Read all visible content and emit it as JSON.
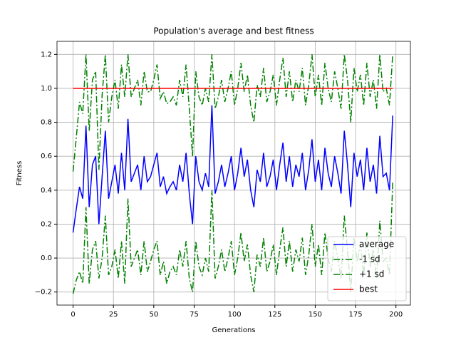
{
  "chart_data": {
    "type": "line",
    "title": "Population's average and best fitness",
    "xlabel": "Generations",
    "ylabel": "Fitness",
    "x": [
      0,
      2,
      4,
      6,
      8,
      10,
      12,
      14,
      16,
      18,
      20,
      22,
      24,
      26,
      28,
      30,
      32,
      34,
      36,
      38,
      40,
      42,
      44,
      46,
      48,
      50,
      52,
      54,
      56,
      58,
      60,
      62,
      64,
      66,
      68,
      70,
      72,
      74,
      76,
      78,
      80,
      82,
      84,
      86,
      88,
      90,
      92,
      94,
      96,
      98,
      100,
      102,
      104,
      106,
      108,
      110,
      112,
      114,
      116,
      118,
      120,
      122,
      124,
      126,
      128,
      130,
      132,
      134,
      136,
      138,
      140,
      142,
      144,
      146,
      148,
      150,
      152,
      154,
      156,
      158,
      160,
      162,
      164,
      166,
      168,
      170,
      172,
      174,
      176,
      178,
      180,
      182,
      184,
      186,
      188,
      190,
      192,
      194,
      196,
      198
    ],
    "series": [
      {
        "name": "average",
        "color": "#0000ff",
        "linestyle": "solid",
        "values": [
          0.15,
          0.29,
          0.42,
          0.35,
          0.78,
          0.3,
          0.55,
          0.6,
          0.2,
          0.48,
          0.75,
          0.35,
          0.45,
          0.55,
          0.38,
          0.62,
          0.4,
          0.82,
          0.45,
          0.5,
          0.55,
          0.4,
          0.6,
          0.45,
          0.48,
          0.55,
          0.62,
          0.42,
          0.48,
          0.38,
          0.42,
          0.45,
          0.4,
          0.55,
          0.45,
          0.62,
          0.38,
          0.2,
          0.6,
          0.45,
          0.4,
          0.5,
          0.42,
          0.9,
          0.38,
          0.45,
          0.55,
          0.42,
          0.5,
          0.6,
          0.4,
          0.5,
          0.65,
          0.48,
          0.58,
          0.4,
          0.3,
          0.52,
          0.45,
          0.62,
          0.42,
          0.48,
          0.58,
          0.4,
          0.55,
          0.68,
          0.45,
          0.6,
          0.42,
          0.55,
          0.48,
          0.62,
          0.4,
          0.52,
          0.7,
          0.45,
          0.58,
          0.4,
          0.65,
          0.5,
          0.42,
          0.6,
          0.5,
          0.38,
          0.75,
          0.55,
          0.3,
          0.62,
          0.48,
          0.58,
          0.4,
          0.65,
          0.45,
          0.55,
          0.38,
          0.72,
          0.48,
          0.5,
          0.4,
          0.84
        ]
      },
      {
        "name": "-1 sd",
        "color": "#008000",
        "linestyle": "dashdot",
        "values": [
          -0.21,
          -0.13,
          -0.08,
          -0.15,
          0.3,
          -0.15,
          0.05,
          0.1,
          -0.12,
          0.0,
          0.25,
          -0.1,
          -0.05,
          0.05,
          -0.12,
          0.1,
          -0.15,
          0.35,
          -0.05,
          0.0,
          0.05,
          -0.1,
          0.1,
          -0.08,
          -0.02,
          0.05,
          0.1,
          -0.1,
          -0.02,
          -0.15,
          -0.08,
          -0.05,
          -0.1,
          0.05,
          -0.05,
          0.1,
          -0.12,
          -0.2,
          0.1,
          -0.05,
          -0.1,
          0.0,
          -0.08,
          0.4,
          -0.12,
          -0.05,
          0.05,
          -0.08,
          0.0,
          0.1,
          -0.1,
          0.0,
          0.15,
          -0.02,
          0.08,
          -0.1,
          -0.2,
          0.02,
          -0.05,
          0.12,
          -0.08,
          -0.02,
          0.08,
          -0.1,
          0.05,
          0.18,
          -0.05,
          0.1,
          -0.08,
          0.05,
          -0.02,
          0.12,
          -0.1,
          0.02,
          0.2,
          -0.05,
          0.08,
          -0.1,
          0.15,
          0.0,
          -0.08,
          0.1,
          0.0,
          -0.12,
          0.25,
          0.05,
          -0.2,
          0.12,
          -0.02,
          0.08,
          -0.1,
          0.15,
          -0.05,
          0.05,
          -0.12,
          0.22,
          -0.02,
          0.0,
          -0.1,
          0.45
        ]
      },
      {
        "name": "+1 sd",
        "color": "#008000",
        "linestyle": "dashdot",
        "values": [
          0.51,
          0.71,
          0.92,
          0.85,
          1.2,
          0.75,
          1.05,
          1.1,
          0.52,
          0.96,
          1.2,
          0.8,
          0.95,
          1.05,
          0.88,
          1.14,
          0.95,
          1.2,
          0.95,
          1.0,
          1.05,
          0.9,
          1.1,
          0.98,
          0.98,
          1.05,
          1.14,
          0.94,
          0.98,
          0.91,
          0.92,
          0.95,
          0.9,
          1.05,
          0.95,
          1.14,
          0.88,
          0.6,
          1.1,
          0.95,
          0.9,
          1.0,
          0.92,
          1.2,
          0.88,
          0.95,
          1.05,
          0.92,
          1.0,
          1.1,
          0.9,
          1.0,
          1.15,
          0.98,
          1.08,
          0.9,
          0.8,
          1.02,
          0.95,
          1.12,
          0.92,
          0.98,
          1.08,
          0.9,
          1.05,
          1.18,
          0.95,
          1.1,
          0.92,
          1.05,
          0.98,
          1.12,
          0.9,
          1.02,
          1.2,
          0.95,
          1.08,
          0.9,
          1.15,
          1.0,
          0.92,
          1.1,
          1.0,
          0.88,
          1.2,
          1.05,
          0.8,
          1.12,
          0.98,
          1.08,
          0.9,
          1.15,
          0.95,
          1.05,
          0.88,
          1.2,
          0.98,
          1.0,
          0.9,
          1.2
        ]
      },
      {
        "name": "best",
        "color": "#ff0000",
        "linestyle": "solid",
        "values": [
          1,
          1,
          1,
          1,
          1,
          1,
          1,
          1,
          1,
          1,
          1,
          1,
          1,
          1,
          1,
          1,
          1,
          1,
          1,
          1,
          1,
          1,
          1,
          1,
          1,
          1,
          1,
          1,
          1,
          1,
          1,
          1,
          1,
          1,
          1,
          1,
          1,
          1,
          1,
          1,
          1,
          1,
          1,
          1,
          1,
          1,
          1,
          1,
          1,
          1,
          1,
          1,
          1,
          1,
          1,
          1,
          1,
          1,
          1,
          1,
          1,
          1,
          1,
          1,
          1,
          1,
          1,
          1,
          1,
          1,
          1,
          1,
          1,
          1,
          1,
          1,
          1,
          1,
          1,
          1,
          1,
          1,
          1,
          1,
          1,
          1,
          1,
          1,
          1,
          1,
          1,
          1,
          1,
          1,
          1,
          1,
          1,
          1,
          1,
          1
        ]
      }
    ],
    "xlim": [
      -9.95,
      208.95
    ],
    "ylim": [
      -0.277,
      1.277
    ],
    "xticks": [
      0,
      25,
      50,
      75,
      100,
      125,
      150,
      175,
      200
    ],
    "yticks": [
      {
        "value": -0.2,
        "label": "−0.2"
      },
      {
        "value": 0,
        "label": "0.0"
      },
      0.2,
      0.4,
      0.6,
      0.8,
      {
        "value": 1,
        "label": "1.0"
      },
      1.2
    ],
    "grid": true,
    "legend": "lower right"
  }
}
